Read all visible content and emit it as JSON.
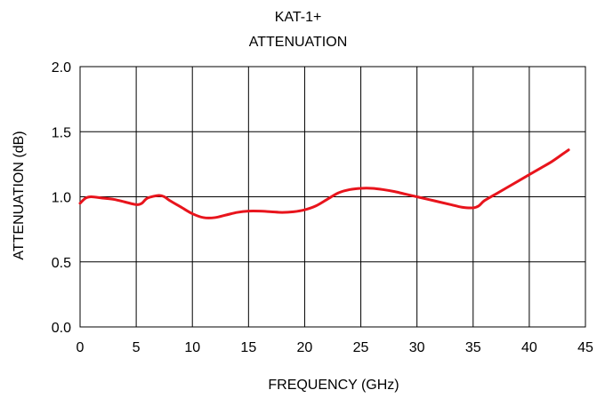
{
  "chart_data": {
    "type": "line",
    "title": "KAT-1+",
    "subtitle": "ATTENUATION",
    "xlabel": "FREQUENCY (GHz)",
    "ylabel": "ATTENUATION (dB)",
    "xlim": [
      0,
      45
    ],
    "ylim": [
      0,
      2.0
    ],
    "x_ticks": [
      "0",
      "5",
      "10",
      "15",
      "20",
      "25",
      "30",
      "35",
      "40",
      "45"
    ],
    "y_ticks": [
      "0.0",
      "0.5",
      "1.0",
      "1.5",
      "2.0"
    ],
    "grid": true,
    "legend": "none",
    "series": [
      {
        "color": "#e8141c",
        "x": [
          0,
          0.5,
          1,
          2,
          3,
          4,
          5,
          5.5,
          6,
          7,
          7.5,
          8,
          9,
          10,
          11,
          12,
          13,
          14,
          15,
          16,
          17,
          18,
          19,
          20,
          21,
          22,
          23,
          24,
          25,
          26,
          27,
          28,
          29,
          30,
          31,
          32,
          33,
          34,
          35,
          35.5,
          36,
          37,
          38,
          39,
          40,
          41,
          42,
          43,
          43.5
        ],
        "y": [
          0.95,
          0.99,
          1.0,
          0.99,
          0.98,
          0.96,
          0.94,
          0.95,
          0.99,
          1.01,
          1.0,
          0.97,
          0.92,
          0.87,
          0.84,
          0.84,
          0.86,
          0.88,
          0.89,
          0.89,
          0.885,
          0.88,
          0.885,
          0.9,
          0.93,
          0.98,
          1.03,
          1.055,
          1.065,
          1.065,
          1.055,
          1.04,
          1.02,
          1.0,
          0.98,
          0.96,
          0.94,
          0.92,
          0.915,
          0.93,
          0.97,
          1.02,
          1.07,
          1.12,
          1.17,
          1.22,
          1.27,
          1.33,
          1.36
        ]
      }
    ]
  }
}
